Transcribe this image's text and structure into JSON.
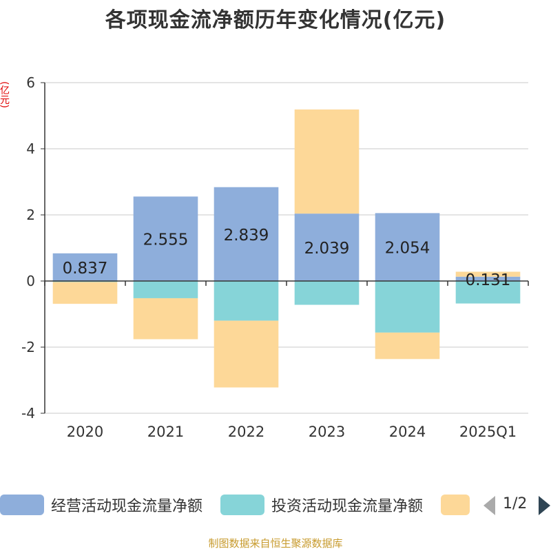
{
  "chart_data": {
    "type": "bar",
    "stacked": true,
    "title": "各项现金流净额历年变化情况(亿元)",
    "ylabel": "(亿元)",
    "categories": [
      "2020",
      "2021",
      "2022",
      "2023",
      "2024",
      "2025Q1"
    ],
    "ylim": [
      -4,
      6
    ],
    "yticks": [
      -4,
      -2,
      0,
      2,
      4,
      6
    ],
    "grid": true,
    "legend_position": "bottom",
    "series": [
      {
        "name": "经营活动现金流量净额",
        "color": "#8eaedb",
        "values": [
          0.837,
          2.555,
          2.839,
          2.039,
          2.054,
          0.131
        ],
        "labels": [
          "0.837",
          "2.555",
          "2.839",
          "2.039",
          "2.054",
          "0.131"
        ]
      },
      {
        "name": "投资活动现金流量净额",
        "color": "#86d4d8",
        "values": [
          -0.03,
          -0.52,
          -1.2,
          -0.72,
          -1.56,
          -0.68
        ]
      },
      {
        "name": "",
        "color": "#fdd898",
        "values": [
          -0.66,
          -1.24,
          -2.02,
          3.15,
          -0.8,
          0.15
        ]
      }
    ]
  },
  "legend": {
    "page": "1/2"
  },
  "source": "制图数据来自恒生聚源数据库"
}
